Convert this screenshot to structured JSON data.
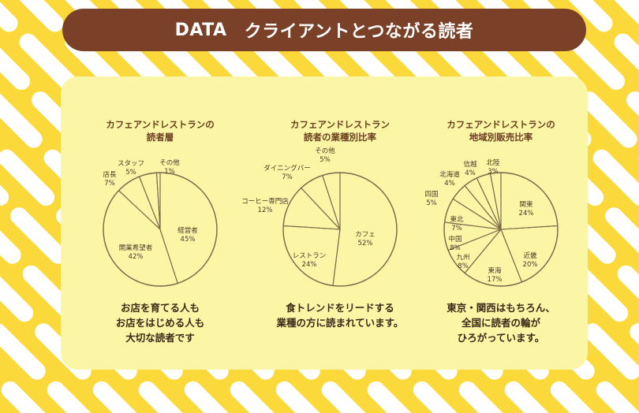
{
  "banner": {
    "data_label": "DATA",
    "title": "クライアントとつながる読者"
  },
  "colors": {
    "background": "#fbd93a",
    "stripe": "#ffffff",
    "banner": "#7a4128",
    "panel": "#fbf5a6",
    "line": "#7d6a4a"
  },
  "chart_data": [
    {
      "type": "pie",
      "title_lines": [
        "カフェアンドレストランの",
        "読者層"
      ],
      "slices": [
        {
          "label": "経営者",
          "value": 45
        },
        {
          "label": "開業希望者",
          "value": 42
        },
        {
          "label": "店長",
          "value": 7
        },
        {
          "label": "スタッフ",
          "value": 5
        },
        {
          "label": "その他",
          "value": 1
        }
      ],
      "caption_lines": [
        "お店を育てる人も",
        "お店をはじめる人も",
        "大切な読者です"
      ]
    },
    {
      "type": "pie",
      "title_lines": [
        "カフェアンドレストラン",
        "読者の業種別比率"
      ],
      "slices": [
        {
          "label": "カフェ",
          "value": 52
        },
        {
          "label": "レストラン",
          "value": 24
        },
        {
          "label": "コーヒー専門店",
          "value": 12
        },
        {
          "label": "ダイニングバー",
          "value": 7
        },
        {
          "label": "その他",
          "value": 5
        }
      ],
      "caption_lines": [
        "食トレンドをリードする",
        "業種の方に読まれています。"
      ]
    },
    {
      "type": "pie",
      "title_lines": [
        "カフェアンドレストランの",
        "地域別販売比率"
      ],
      "slices": [
        {
          "label": "関東",
          "value": 24
        },
        {
          "label": "近畿",
          "value": 20
        },
        {
          "label": "東海",
          "value": 17
        },
        {
          "label": "九州",
          "value": 8
        },
        {
          "label": "中国",
          "value": 8
        },
        {
          "label": "東北",
          "value": 7
        },
        {
          "label": "四国",
          "value": 5
        },
        {
          "label": "北海道",
          "value": 4
        },
        {
          "label": "信越",
          "value": 4
        },
        {
          "label": "北陸",
          "value": 3
        }
      ],
      "caption_lines": [
        "東京・関西はもちろん、",
        "全国に読者の輪が",
        "ひろがっています。"
      ]
    }
  ]
}
